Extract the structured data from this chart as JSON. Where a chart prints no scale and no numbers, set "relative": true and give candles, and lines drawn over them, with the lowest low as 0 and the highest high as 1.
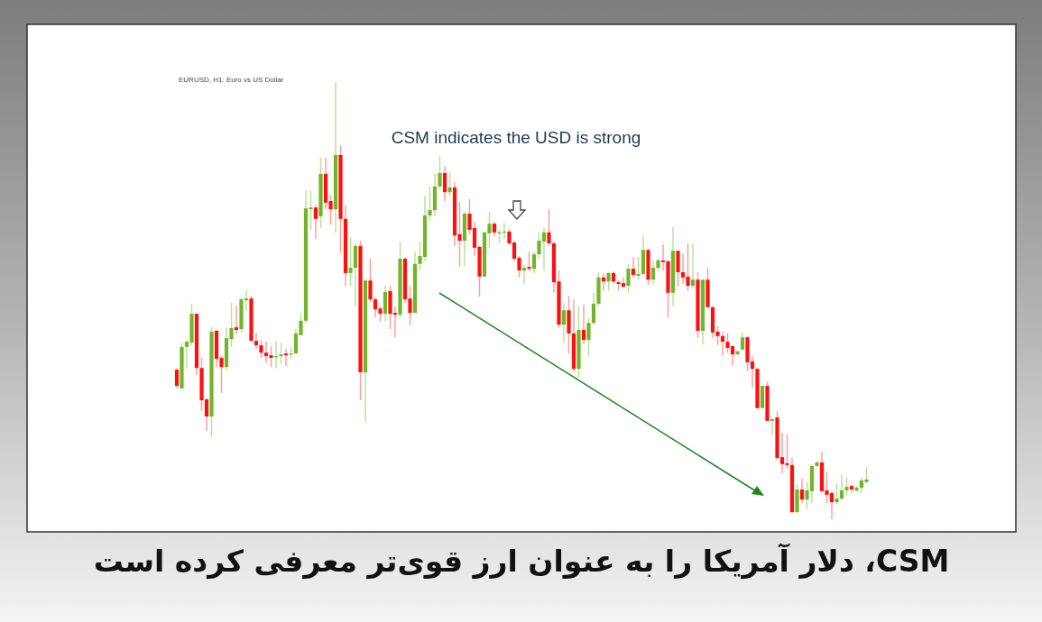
{
  "chart_data": {
    "type": "candlestick",
    "relative": true,
    "title": "CSM، دلار آمریکا را به عنوان ارز قوی‌تر معرفی کرده است",
    "subtitle": "EURUSD, H1:  Euro vs US Dollar",
    "annotations": [
      "CSM indicates the USD is strong"
    ],
    "categories": [
      null,
      null,
      null,
      null,
      null,
      null,
      null,
      null,
      null,
      null,
      null,
      null,
      null,
      null,
      null,
      null,
      null,
      null,
      null,
      null,
      null,
      null,
      null,
      null,
      null,
      null,
      null,
      null,
      null,
      null,
      null,
      null,
      null,
      null,
      null,
      null,
      null,
      null,
      null,
      null,
      null,
      null,
      null,
      null,
      null,
      null,
      null,
      null,
      null,
      null,
      null,
      null,
      null,
      null,
      null,
      null,
      null,
      null,
      null,
      null,
      null,
      null,
      null,
      null,
      null,
      null,
      null,
      null,
      null,
      null,
      null,
      null,
      null,
      null,
      null,
      null,
      null,
      null,
      null,
      null,
      null,
      null,
      null,
      null,
      null,
      null,
      null,
      null,
      null,
      null,
      null,
      null,
      null,
      null,
      null,
      null,
      null,
      null,
      null,
      null,
      null,
      null,
      null,
      null,
      null,
      null,
      null,
      null,
      null,
      null,
      null,
      null,
      null,
      null,
      null,
      null,
      null,
      null,
      null,
      null,
      null,
      null,
      null,
      null,
      null,
      null,
      null,
      null,
      null,
      null,
      null,
      null,
      null,
      null,
      null,
      null,
      null,
      null,
      null,
      null
    ],
    "ohlc": [
      [
        0.342,
        0.346,
        0.299,
        0.305
      ],
      [
        0.299,
        0.404,
        0.299,
        0.394
      ],
      [
        0.394,
        0.41,
        0.344,
        0.406
      ],
      [
        0.404,
        0.493,
        0.398,
        0.47
      ],
      [
        0.47,
        0.47,
        0.33,
        0.346
      ],
      [
        0.346,
        0.369,
        0.247,
        0.272
      ],
      [
        0.274,
        0.278,
        0.202,
        0.235
      ],
      [
        0.235,
        0.439,
        0.188,
        0.429
      ],
      [
        0.431,
        0.433,
        0.348,
        0.367
      ],
      [
        0.369,
        0.373,
        0.289,
        0.348
      ],
      [
        0.348,
        0.439,
        0.342,
        0.414
      ],
      [
        0.412,
        0.495,
        0.394,
        0.437
      ],
      [
        0.439,
        0.489,
        0.423,
        0.433
      ],
      [
        0.435,
        0.507,
        0.427,
        0.503
      ],
      [
        0.501,
        0.524,
        0.476,
        0.505
      ],
      [
        0.505,
        0.511,
        0.408,
        0.408
      ],
      [
        0.408,
        0.427,
        0.388,
        0.398
      ],
      [
        0.398,
        0.41,
        0.369,
        0.381
      ],
      [
        0.381,
        0.406,
        0.357,
        0.373
      ],
      [
        0.375,
        0.396,
        0.348,
        0.369
      ],
      [
        0.371,
        0.408,
        0.346,
        0.373
      ],
      [
        0.373,
        0.404,
        0.355,
        0.377
      ],
      [
        0.379,
        0.39,
        0.351,
        0.375
      ],
      [
        0.377,
        0.394,
        0.367,
        0.379
      ],
      [
        0.379,
        0.435,
        0.379,
        0.425
      ],
      [
        0.421,
        0.472,
        0.421,
        0.454
      ],
      [
        0.454,
        0.753,
        0.449,
        0.711
      ],
      [
        0.709,
        0.751,
        0.662,
        0.713
      ],
      [
        0.713,
        0.718,
        0.641,
        0.687
      ],
      [
        0.693,
        0.827,
        0.666,
        0.79
      ],
      [
        0.79,
        0.827,
        0.709,
        0.724
      ],
      [
        0.728,
        0.742,
        0.674,
        0.709
      ],
      [
        0.709,
        1.0,
        0.656,
        0.833
      ],
      [
        0.833,
        0.856,
        0.61,
        0.687
      ],
      [
        0.687,
        0.718,
        0.534,
        0.563
      ],
      [
        0.563,
        0.645,
        0.534,
        0.575
      ],
      [
        0.575,
        0.631,
        0.487,
        0.625
      ],
      [
        0.625,
        0.637,
        0.272,
        0.336
      ],
      [
        0.336,
        0.551,
        0.223,
        0.546
      ],
      [
        0.546,
        0.596,
        0.497,
        0.503
      ],
      [
        0.503,
        0.507,
        0.462,
        0.48
      ],
      [
        0.482,
        0.487,
        0.452,
        0.47
      ],
      [
        0.47,
        0.534,
        0.452,
        0.52
      ],
      [
        0.522,
        0.534,
        0.435,
        0.47
      ],
      [
        0.472,
        0.487,
        0.416,
        0.468
      ],
      [
        0.468,
        0.635,
        0.462,
        0.596
      ],
      [
        0.596,
        0.598,
        0.495,
        0.503
      ],
      [
        0.505,
        0.534,
        0.443,
        0.472
      ],
      [
        0.472,
        0.612,
        0.472,
        0.584
      ],
      [
        0.584,
        0.635,
        0.569,
        0.602
      ],
      [
        0.6,
        0.74,
        0.59,
        0.695
      ],
      [
        0.695,
        0.761,
        0.682,
        0.707
      ],
      [
        0.707,
        0.79,
        0.693,
        0.761
      ],
      [
        0.761,
        0.831,
        0.755,
        0.792
      ],
      [
        0.792,
        0.808,
        0.728,
        0.748
      ],
      [
        0.748,
        0.794,
        0.738,
        0.759
      ],
      [
        0.759,
        0.771,
        0.625,
        0.649
      ],
      [
        0.652,
        0.726,
        0.577,
        0.637
      ],
      [
        0.637,
        0.703,
        0.579,
        0.699
      ],
      [
        0.699,
        0.732,
        0.652,
        0.662
      ],
      [
        0.666,
        0.68,
        0.602,
        0.621
      ],
      [
        0.623,
        0.625,
        0.509,
        0.555
      ],
      [
        0.555,
        0.658,
        0.555,
        0.656
      ],
      [
        0.654,
        0.703,
        0.621,
        0.676
      ],
      [
        0.676,
        0.68,
        0.647,
        0.656
      ],
      [
        0.654,
        0.664,
        0.631,
        0.656
      ],
      [
        0.656,
        0.678,
        0.641,
        0.658
      ],
      [
        0.658,
        0.664,
        0.627,
        0.631
      ],
      [
        0.633,
        0.635,
        0.59,
        0.596
      ],
      [
        0.598,
        0.602,
        0.553,
        0.569
      ],
      [
        0.569,
        0.581,
        0.538,
        0.575
      ],
      [
        0.577,
        0.612,
        0.569,
        0.573
      ],
      [
        0.573,
        0.614,
        0.563,
        0.606
      ],
      [
        0.606,
        0.656,
        0.596,
        0.637
      ],
      [
        0.635,
        0.666,
        0.569,
        0.656
      ],
      [
        0.656,
        0.709,
        0.625,
        0.631
      ],
      [
        0.631,
        0.635,
        0.518,
        0.542
      ],
      [
        0.544,
        0.569,
        0.437,
        0.445
      ],
      [
        0.445,
        0.495,
        0.404,
        0.478
      ],
      [
        0.478,
        0.511,
        0.379,
        0.425
      ],
      [
        0.425,
        0.503,
        0.338,
        0.344
      ],
      [
        0.344,
        0.487,
        0.324,
        0.433
      ],
      [
        0.433,
        0.491,
        0.4,
        0.41
      ],
      [
        0.41,
        0.462,
        0.373,
        0.449
      ],
      [
        0.449,
        0.518,
        0.445,
        0.493
      ],
      [
        0.493,
        0.565,
        0.487,
        0.553
      ],
      [
        0.553,
        0.563,
        0.522,
        0.544
      ],
      [
        0.544,
        0.565,
        0.522,
        0.563
      ],
      [
        0.563,
        0.567,
        0.54,
        0.544
      ],
      [
        0.542,
        0.546,
        0.524,
        0.538
      ],
      [
        0.54,
        0.553,
        0.528,
        0.532
      ],
      [
        0.534,
        0.584,
        0.518,
        0.573
      ],
      [
        0.573,
        0.6,
        0.553,
        0.559
      ],
      [
        0.557,
        0.6,
        0.548,
        0.561
      ],
      [
        0.561,
        0.647,
        0.557,
        0.616
      ],
      [
        0.616,
        0.619,
        0.536,
        0.548
      ],
      [
        0.548,
        0.59,
        0.538,
        0.575
      ],
      [
        0.575,
        0.596,
        0.569,
        0.592
      ],
      [
        0.592,
        0.629,
        0.569,
        0.588
      ],
      [
        0.59,
        0.592,
        0.462,
        0.518
      ],
      [
        0.518,
        0.668,
        0.487,
        0.614
      ],
      [
        0.614,
        0.614,
        0.532,
        0.565
      ],
      [
        0.565,
        0.606,
        0.538,
        0.553
      ],
      [
        0.555,
        0.631,
        0.522,
        0.534
      ],
      [
        0.534,
        0.631,
        0.528,
        0.548
      ],
      [
        0.548,
        0.565,
        0.414,
        0.431
      ],
      [
        0.431,
        0.548,
        0.4,
        0.548
      ],
      [
        0.548,
        0.575,
        0.485,
        0.485
      ],
      [
        0.485,
        0.487,
        0.414,
        0.427
      ],
      [
        0.429,
        0.441,
        0.398,
        0.419
      ],
      [
        0.419,
        0.429,
        0.375,
        0.406
      ],
      [
        0.406,
        0.425,
        0.381,
        0.392
      ],
      [
        0.396,
        0.398,
        0.351,
        0.377
      ],
      [
        0.377,
        0.386,
        0.377,
        0.384
      ],
      [
        0.388,
        0.427,
        0.388,
        0.416
      ],
      [
        0.416,
        0.419,
        0.34,
        0.359
      ],
      [
        0.361,
        0.373,
        0.301,
        0.344
      ],
      [
        0.344,
        0.346,
        0.254,
        0.254
      ],
      [
        0.254,
        0.305,
        0.254,
        0.305
      ],
      [
        0.305,
        0.315,
        0.225,
        0.225
      ],
      [
        0.225,
        0.229,
        0.192,
        0.229
      ],
      [
        0.233,
        0.247,
        0.136,
        0.14
      ],
      [
        0.142,
        0.198,
        0.105,
        0.126
      ],
      [
        0.128,
        0.194,
        0.115,
        0.124
      ],
      [
        0.124,
        0.14,
        0.016,
        0.016
      ],
      [
        0.016,
        0.08,
        0.016,
        0.068
      ],
      [
        0.068,
        0.093,
        0.037,
        0.045
      ],
      [
        0.045,
        0.085,
        0.023,
        0.066
      ],
      [
        0.064,
        0.122,
        0.037,
        0.122
      ],
      [
        0.122,
        0.132,
        0.118,
        0.13
      ],
      [
        0.13,
        0.155,
        0.064,
        0.064
      ],
      [
        0.066,
        0.109,
        0.037,
        0.056
      ],
      [
        0.06,
        0.064,
        0.0,
        0.039
      ],
      [
        0.039,
        0.08,
        0.035,
        0.047
      ],
      [
        0.047,
        0.101,
        0.043,
        0.066
      ],
      [
        0.066,
        0.095,
        0.054,
        0.074
      ],
      [
        0.076,
        0.08,
        0.06,
        0.068
      ],
      [
        0.066,
        0.076,
        0.062,
        0.072
      ],
      [
        0.072,
        0.095,
        0.06,
        0.089
      ],
      [
        0.085,
        0.12,
        0.082,
        0.091
      ]
    ]
  }
}
